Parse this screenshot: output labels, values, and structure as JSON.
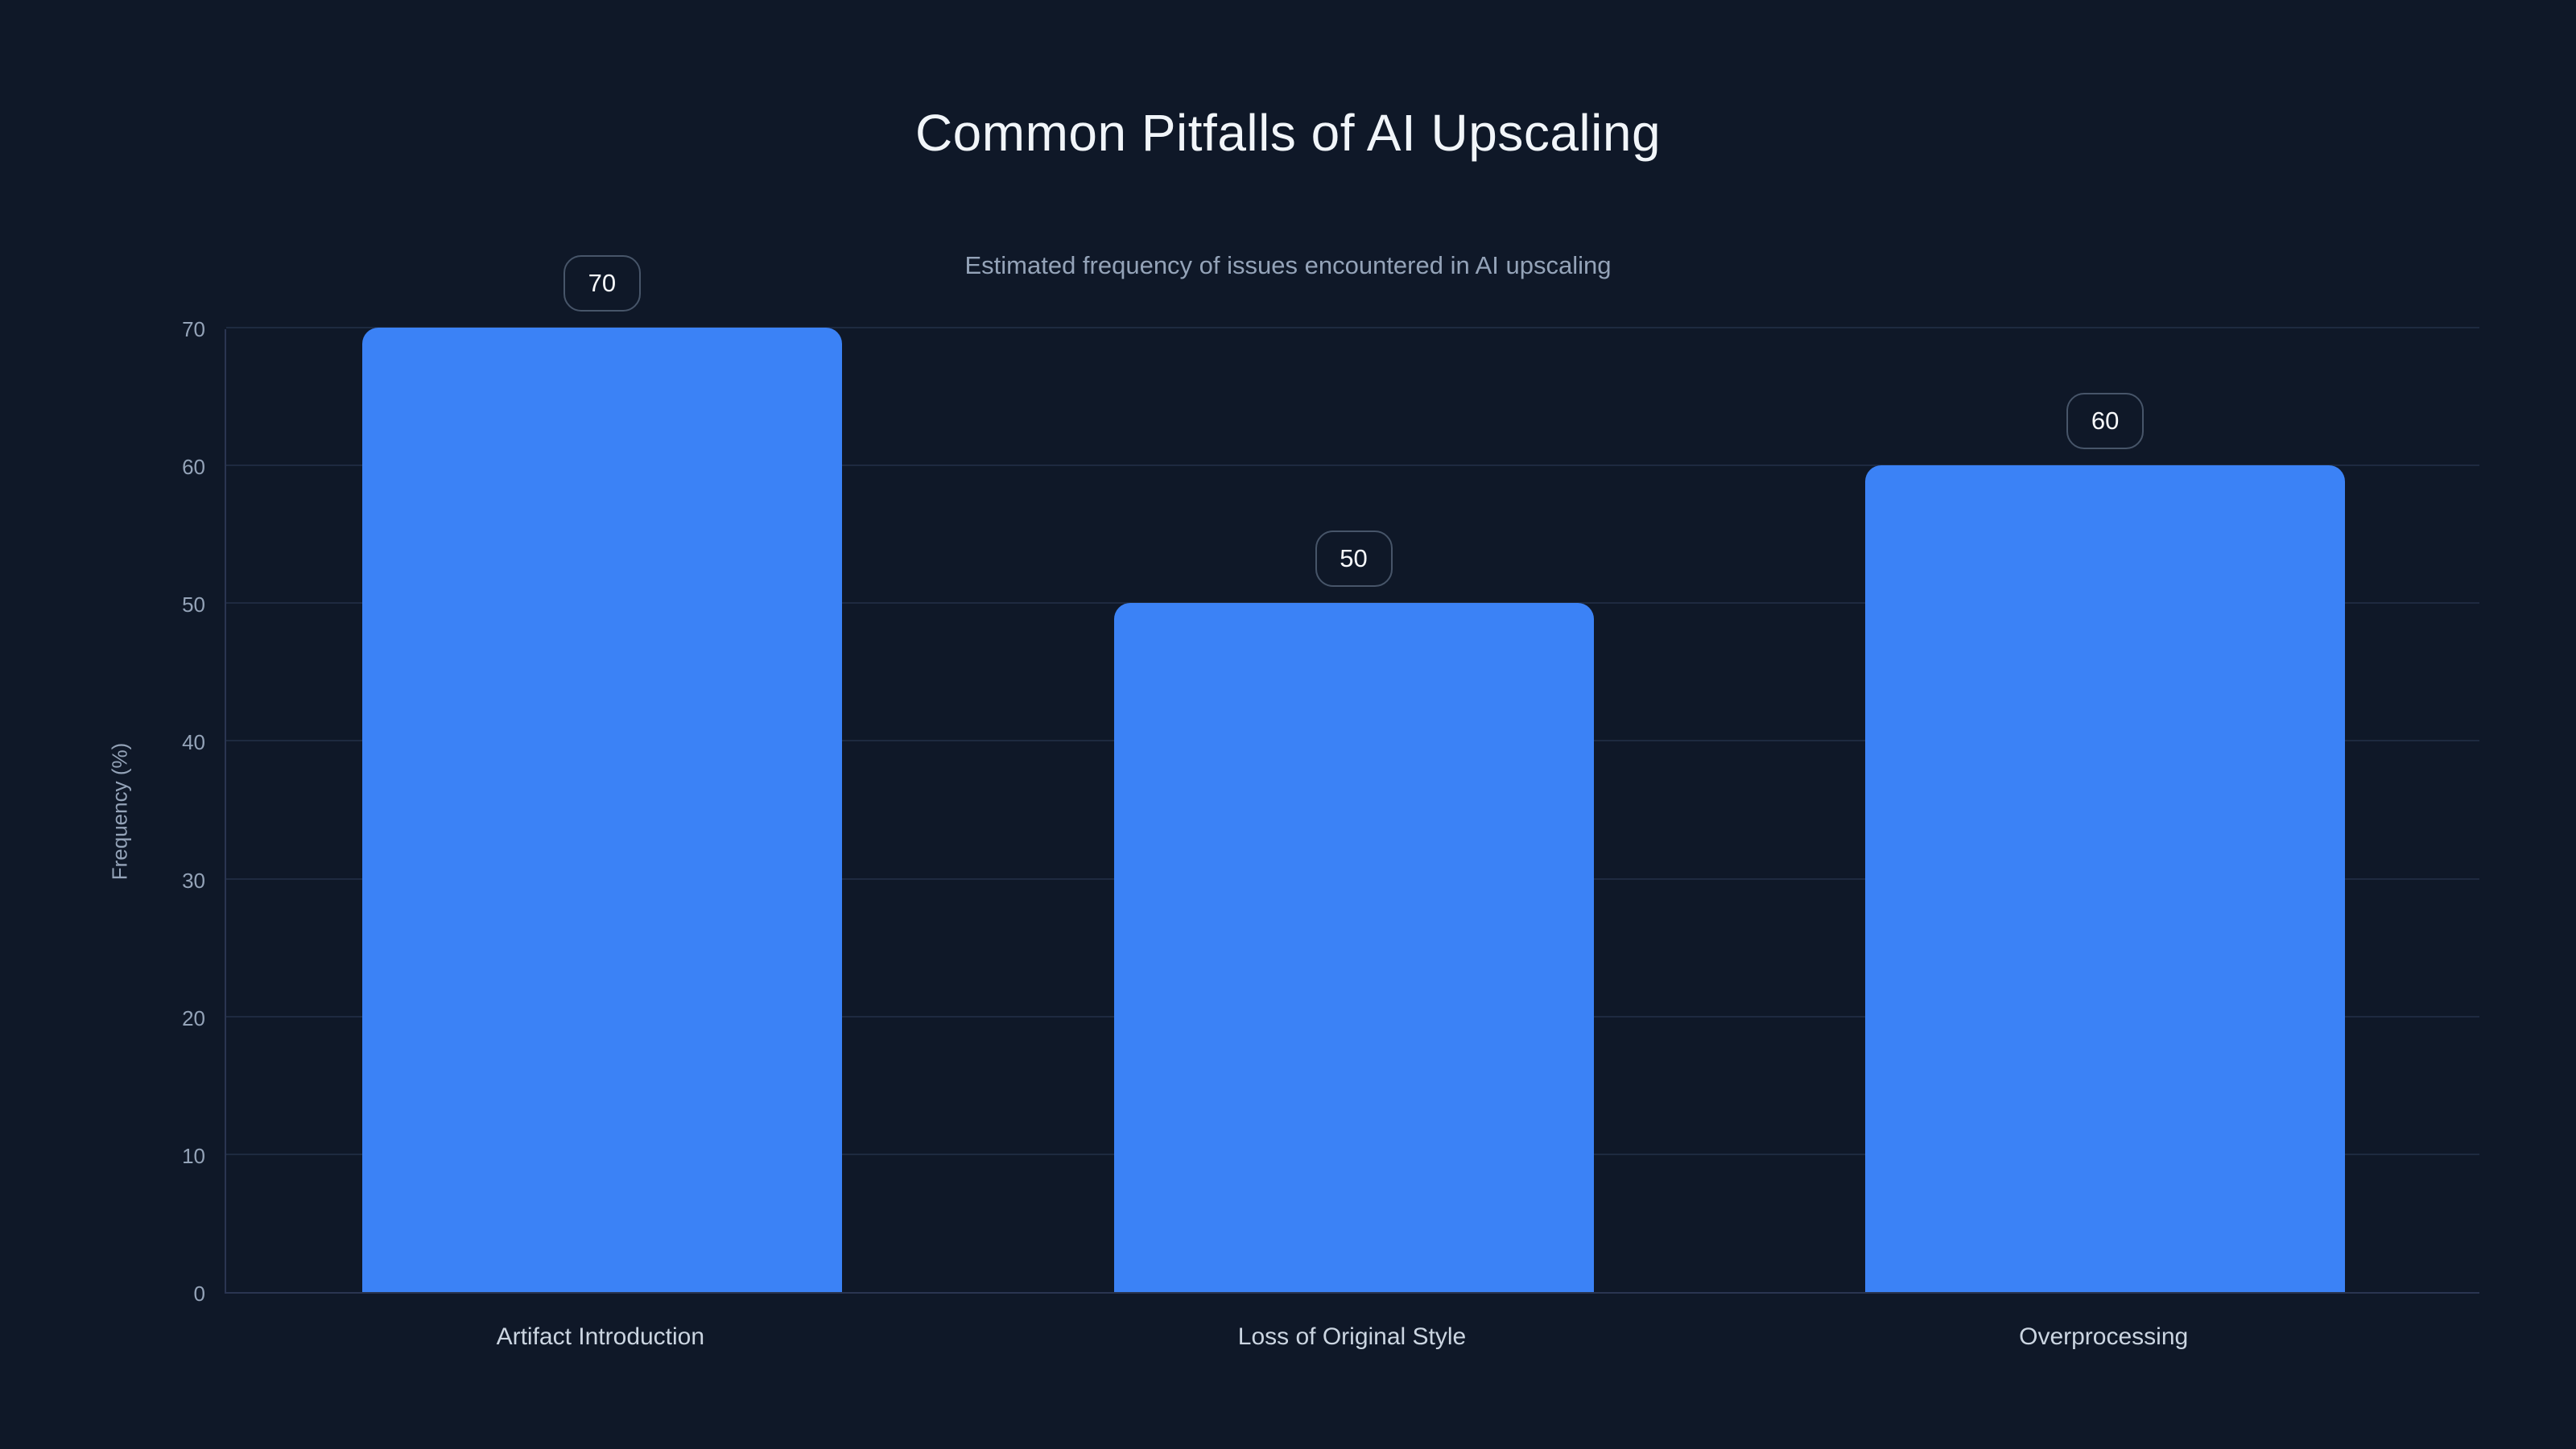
{
  "header": {
    "title": "Common Pitfalls of AI Upscaling",
    "subtitle": "Estimated frequency of issues encountered in AI upscaling"
  },
  "chart_data": {
    "type": "bar",
    "title": "Common Pitfalls of AI Upscaling",
    "subtitle": "Estimated frequency of issues encountered in AI upscaling",
    "categories": [
      "Artifact Introduction",
      "Loss of Original Style",
      "Overprocessing"
    ],
    "values": [
      70,
      50,
      60
    ],
    "value_labels": [
      "70",
      "50",
      "60"
    ],
    "xlabel": "",
    "ylabel": "Frequency (%)",
    "ylim": [
      0,
      70
    ],
    "yticks": [
      0,
      10,
      20,
      30,
      40,
      50,
      60,
      70
    ],
    "grid": "horizontal",
    "legend": "none"
  },
  "colors": {
    "background": "#0f1828",
    "bar": "#3b82f6",
    "gridline": "#1e2a40",
    "axis_line": "#2a3551",
    "title_text": "#f1f5f9",
    "subtitle_text": "#94a3b8",
    "tick_text": "#94a3b8",
    "category_text": "#cbd5e1",
    "badge_border": "#475569",
    "badge_text": "#f8fafc"
  }
}
